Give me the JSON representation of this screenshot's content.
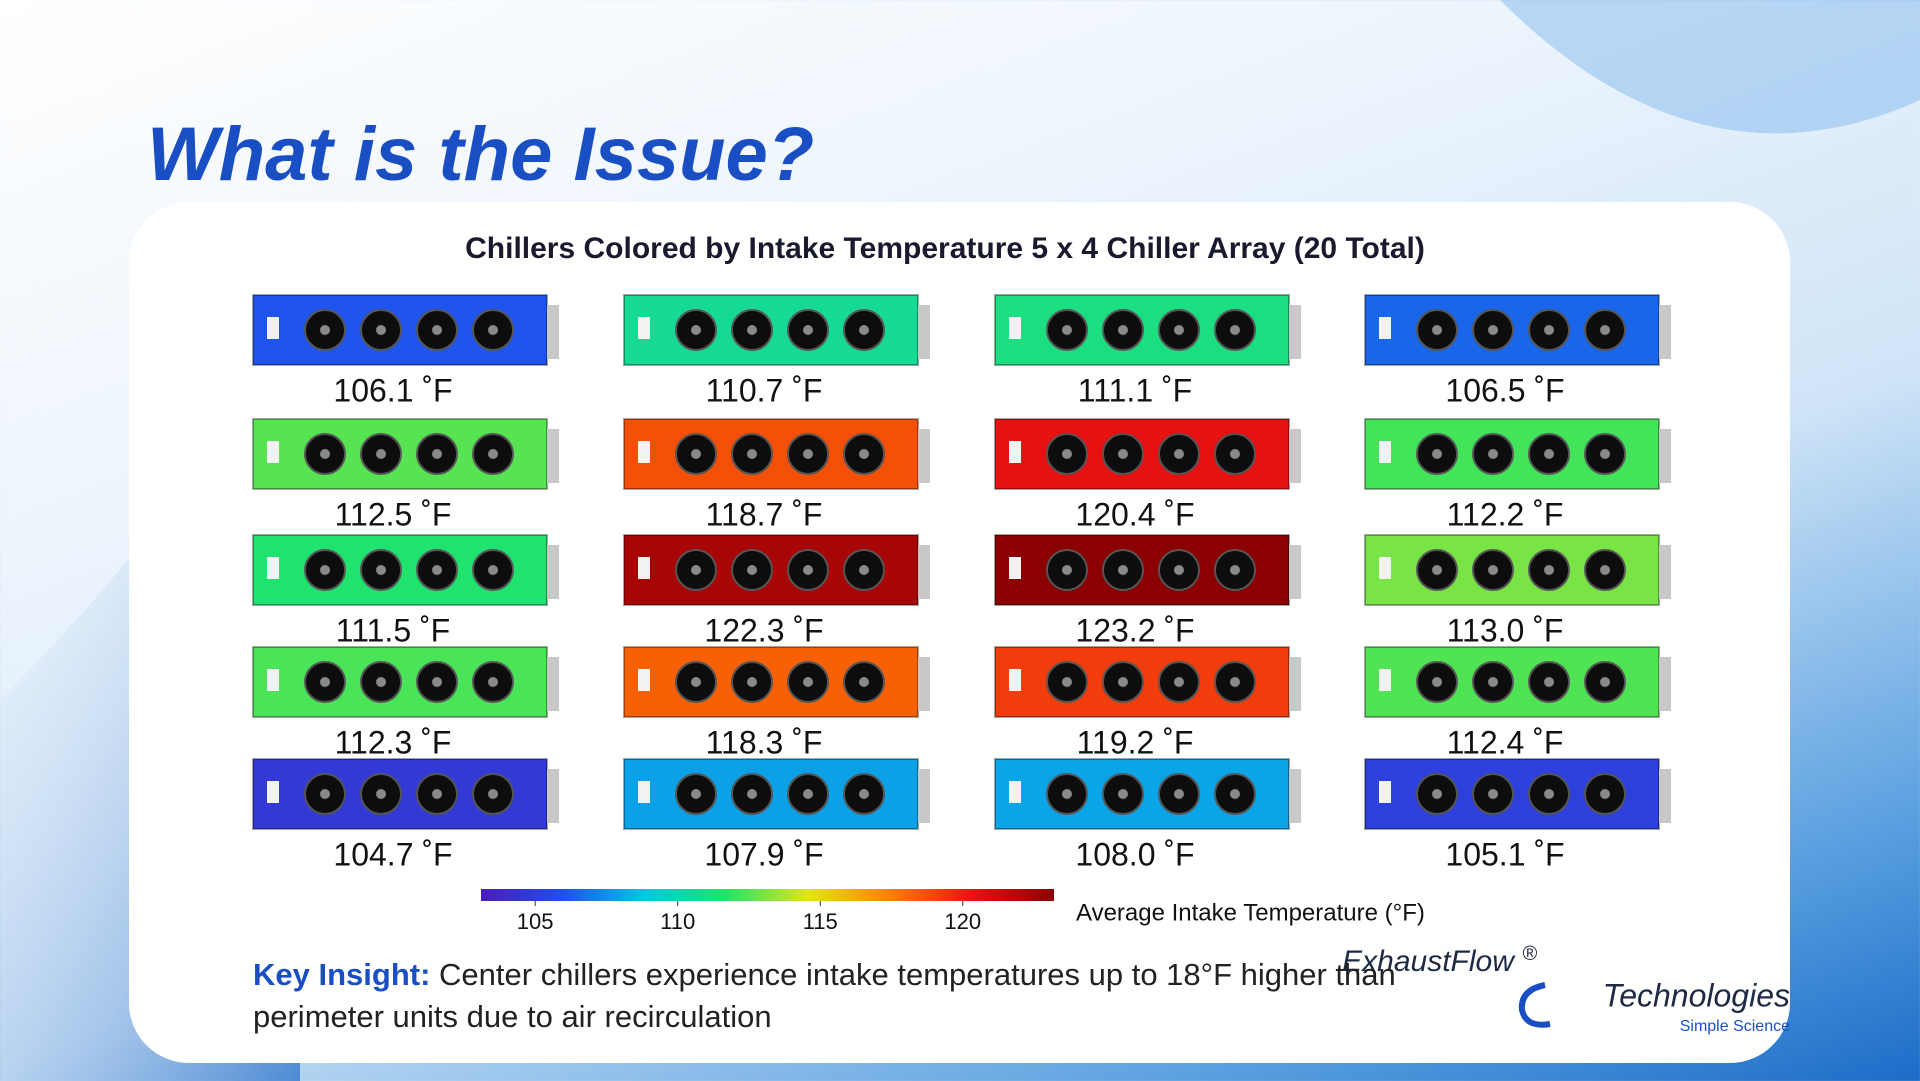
{
  "slide": {
    "title": "What is the Issue?",
    "insight": {
      "label": "Key Insight:",
      "text": "Center chillers experience intake temperatures up to 18°F higher than perimeter units due to air recirculation"
    },
    "logo": {
      "name": "ExhaustFlow",
      "mark": "®",
      "name2": "Technologies",
      "tagline": "Simple Science"
    }
  },
  "chart_data": {
    "type": "chiller-grid",
    "title": "Chillers Colored by Intake Temperature 5 x 4 Chiller Array (20 Total)",
    "values": [
      [
        106.1,
        110.7,
        111.1,
        106.5
      ],
      [
        112.5,
        118.7,
        120.4,
        112.2
      ],
      [
        111.5,
        122.3,
        123.2,
        113.0
      ],
      [
        112.3,
        118.3,
        119.2,
        112.4
      ],
      [
        104.7,
        107.9,
        108.0,
        105.1
      ]
    ],
    "value_labels": [
      [
        "106.1 ˚F",
        "110.7 ˚F",
        "111.1 ˚F",
        "106.5 ˚F"
      ],
      [
        "112.5 ˚F",
        "118.7 ˚F",
        "120.4 ˚F",
        "112.2 ˚F"
      ],
      [
        "111.5 ˚F",
        "122.3 ˚F",
        "123.2 ˚F",
        "113.0 ˚F"
      ],
      [
        "112.3 ˚F",
        "118.3 ˚F",
        "119.2 ˚F",
        "112.4 ˚F"
      ],
      [
        "104.7 ˚F",
        "107.9 ˚F",
        "108.0 ˚F",
        "105.1 ˚F"
      ]
    ],
    "colormap": [
      "#4a1cb8",
      "#2050ec",
      "#00c8e4",
      "#22e466",
      "#e2e41e",
      "#ff8000",
      "#e81212",
      "#8b0000"
    ],
    "colorbar": {
      "lim": [
        103.1,
        123.2
      ],
      "ticks": [
        105,
        110,
        115,
        120
      ],
      "label": "Average Intake Temperature (°F)"
    }
  }
}
